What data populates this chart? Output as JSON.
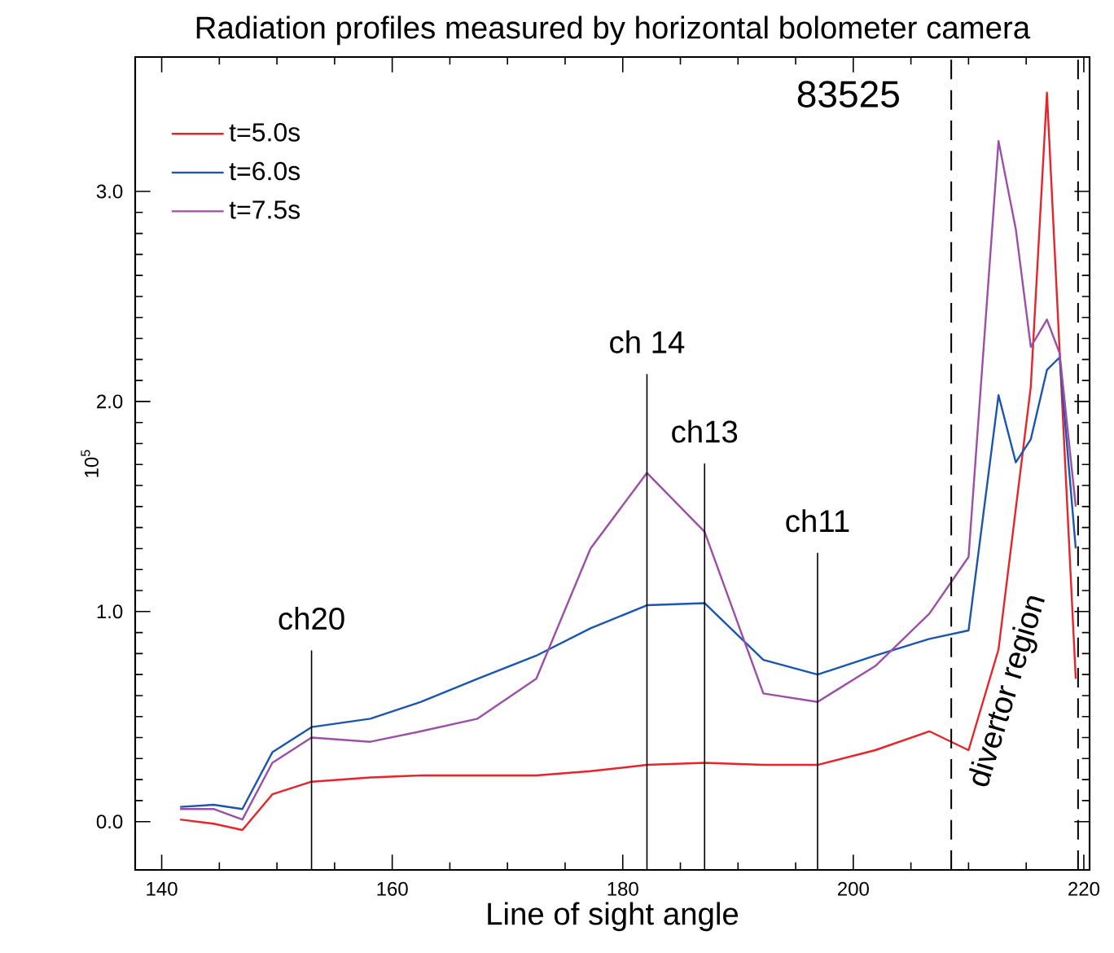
{
  "chart_data": {
    "type": "line",
    "title": "Radiation profiles measured by horizontal bolometer camera",
    "xlabel": "Line of sight angle",
    "ylabel": "10$^{5}$",
    "annotations": [
      "83525",
      "divertor region"
    ],
    "series": [
      {
        "name": "t=5.0s",
        "color": "#e8232a",
        "x": [
          141.6,
          144.5,
          147.0,
          149.6,
          153.0,
          158.1,
          162.5,
          167.4,
          172.5,
          177.2,
          182.1,
          187.1,
          192.2,
          196.9,
          201.9,
          206.6,
          210.0,
          212.6,
          215.4,
          216.8,
          219.3
        ],
        "values": [
          0.01,
          -0.01,
          -0.04,
          0.13,
          0.19,
          0.21,
          0.22,
          0.22,
          0.22,
          0.24,
          0.27,
          0.28,
          0.27,
          0.27,
          0.34,
          0.43,
          0.34,
          0.82,
          2.07,
          3.47,
          0.68
        ]
      },
      {
        "name": "t=6.0s",
        "color": "#1a56b0",
        "x": [
          141.6,
          144.5,
          147.0,
          149.6,
          153.0,
          158.1,
          162.5,
          167.4,
          172.5,
          177.2,
          182.1,
          187.1,
          192.2,
          196.9,
          201.9,
          206.6,
          210.0,
          212.6,
          214.1,
          215.4,
          216.8,
          217.9,
          219.3
        ],
        "values": [
          0.07,
          0.08,
          0.06,
          0.33,
          0.45,
          0.49,
          0.57,
          0.68,
          0.79,
          0.92,
          1.03,
          1.04,
          0.77,
          0.7,
          0.79,
          0.87,
          0.91,
          2.03,
          1.71,
          1.82,
          2.15,
          2.21,
          1.3
        ]
      },
      {
        "name": "t=7.5s",
        "color": "#9b4fa5",
        "x": [
          141.6,
          144.5,
          147.0,
          149.6,
          153.0,
          158.1,
          162.5,
          167.4,
          172.5,
          177.2,
          182.1,
          187.1,
          192.2,
          196.9,
          201.9,
          206.6,
          210.0,
          212.6,
          214.1,
          215.4,
          216.8,
          217.9,
          219.3
        ],
        "values": [
          0.06,
          0.06,
          0.01,
          0.28,
          0.4,
          0.38,
          0.43,
          0.49,
          0.68,
          1.3,
          1.66,
          1.38,
          0.61,
          0.57,
          0.74,
          0.99,
          1.26,
          3.24,
          2.82,
          2.26,
          2.39,
          2.23,
          1.5
        ]
      }
    ],
    "xlim": [
      137.7,
      220.5
    ],
    "ylim": [
      -0.23,
      3.64
    ],
    "xticks": [
      140,
      160,
      180,
      200,
      220
    ],
    "yticks": [
      {
        "value": 0,
        "label": "0.0"
      },
      {
        "value": 1,
        "label": "1.0"
      },
      {
        "value": 2,
        "label": "2.0"
      },
      {
        "value": 3,
        "label": "3.0"
      }
    ],
    "ref_lines": [
      {
        "axis": "x",
        "value": 153,
        "label": "ch20"
      },
      {
        "axis": "x",
        "value": 182.1,
        "label": "ch 14"
      },
      {
        "axis": "x",
        "value": 187.1,
        "label": "ch13"
      },
      {
        "axis": "x",
        "value": 196.9,
        "label": "ch11"
      },
      {
        "axis": "x",
        "value": 208.5,
        "line_style": "dashed"
      },
      {
        "axis": "x",
        "value": 219.5,
        "line_style": "dashed"
      }
    ],
    "legend": "top left",
    "grid": false,
    "line_style": "solid",
    "marker": "none"
  }
}
